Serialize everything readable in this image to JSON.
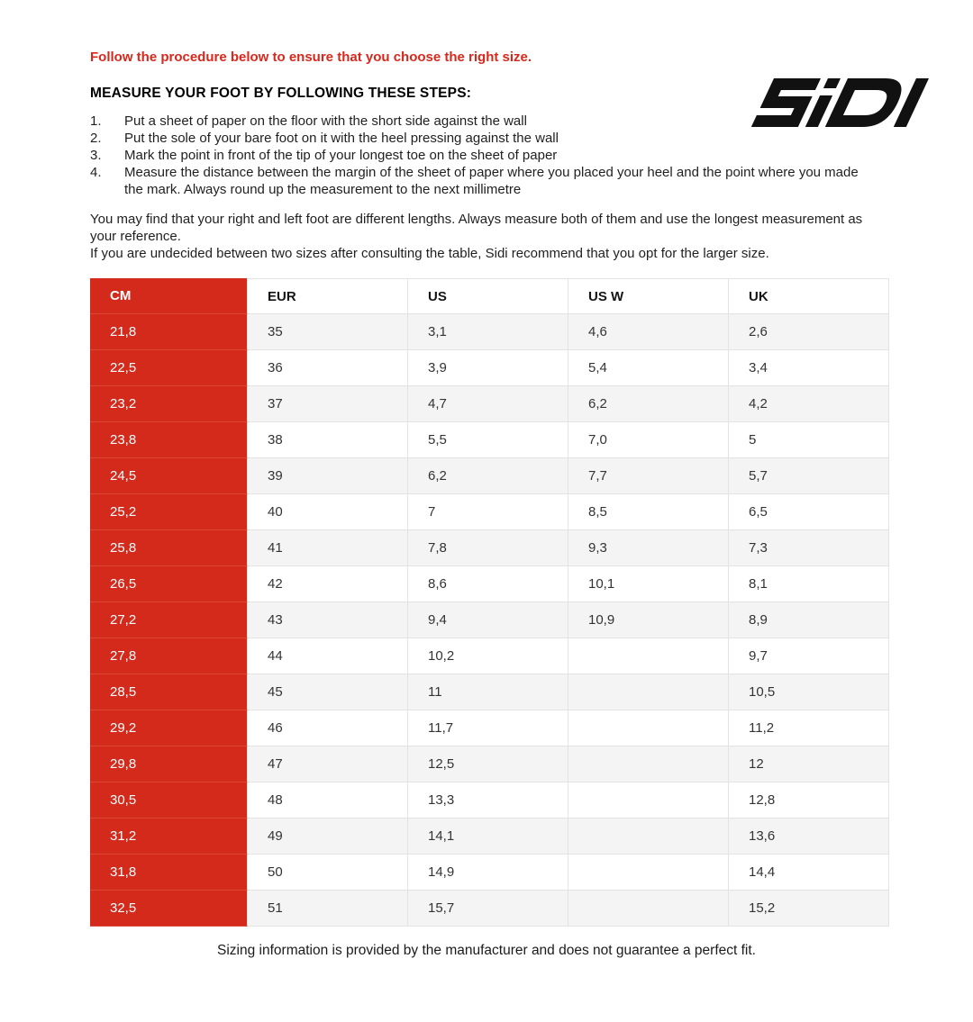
{
  "colors": {
    "brand_red": "#d32a1c",
    "intro_text_red": "#d8281c",
    "row_alt_gray": "#f4f4f4",
    "grid_border": "#e3e3e3",
    "logo_black": "#111111"
  },
  "logo": {
    "name": "SIDI"
  },
  "intro": {
    "text": "Follow the procedure below to ensure that you choose the right size."
  },
  "steps": {
    "heading": "MEASURE YOUR FOOT BY FOLLOWING THESE STEPS:",
    "items": [
      {
        "num": "1.",
        "text": "Put a sheet of paper on the floor with the short side against the wall"
      },
      {
        "num": "2.",
        "text": "Put the sole of your bare foot on it with the heel pressing against the wall"
      },
      {
        "num": "3.",
        "text": "Mark the point in front of the tip of your longest toe on the sheet of paper"
      },
      {
        "num": "4.",
        "text": "Measure the distance between the margin of the sheet of paper where you placed your heel and the point where you made the mark. Always round up the measurement to the next millimetre"
      }
    ]
  },
  "notes": {
    "line1": "You may find that your right and left foot are different lengths. Always measure both of them and use the longest measurement as your reference.",
    "line2": "If you are undecided between two sizes after consulting the table, Sidi recommend that you opt for the larger size."
  },
  "chart_data": {
    "type": "table",
    "columns": [
      "CM",
      "EUR",
      "US",
      "US W",
      "UK"
    ],
    "rows": [
      [
        "21,8",
        "35",
        "3,1",
        "4,6",
        "2,6"
      ],
      [
        "22,5",
        "36",
        "3,9",
        "5,4",
        "3,4"
      ],
      [
        "23,2",
        "37",
        "4,7",
        "6,2",
        "4,2"
      ],
      [
        "23,8",
        "38",
        "5,5",
        "7,0",
        "5"
      ],
      [
        "24,5",
        "39",
        "6,2",
        "7,7",
        "5,7"
      ],
      [
        "25,2",
        "40",
        "7",
        "8,5",
        "6,5"
      ],
      [
        "25,8",
        "41",
        "7,8",
        "9,3",
        "7,3"
      ],
      [
        "26,5",
        "42",
        "8,6",
        "10,1",
        "8,1"
      ],
      [
        "27,2",
        "43",
        "9,4",
        "10,9",
        "8,9"
      ],
      [
        "27,8",
        "44",
        "10,2",
        "",
        "9,7"
      ],
      [
        "28,5",
        "45",
        "11",
        "",
        "10,5"
      ],
      [
        "29,2",
        "46",
        "11,7",
        "",
        "11,2"
      ],
      [
        "29,8",
        "47",
        "12,5",
        "",
        "12"
      ],
      [
        "30,5",
        "48",
        "13,3",
        "",
        "12,8"
      ],
      [
        "31,2",
        "49",
        "14,1",
        "",
        "13,6"
      ],
      [
        "31,8",
        "50",
        "14,9",
        "",
        "14,4"
      ],
      [
        "32,5",
        "51",
        "15,7",
        "",
        "15,2"
      ]
    ]
  },
  "footer": {
    "text": "Sizing information is provided by the manufacturer and does not guarantee a perfect fit."
  }
}
